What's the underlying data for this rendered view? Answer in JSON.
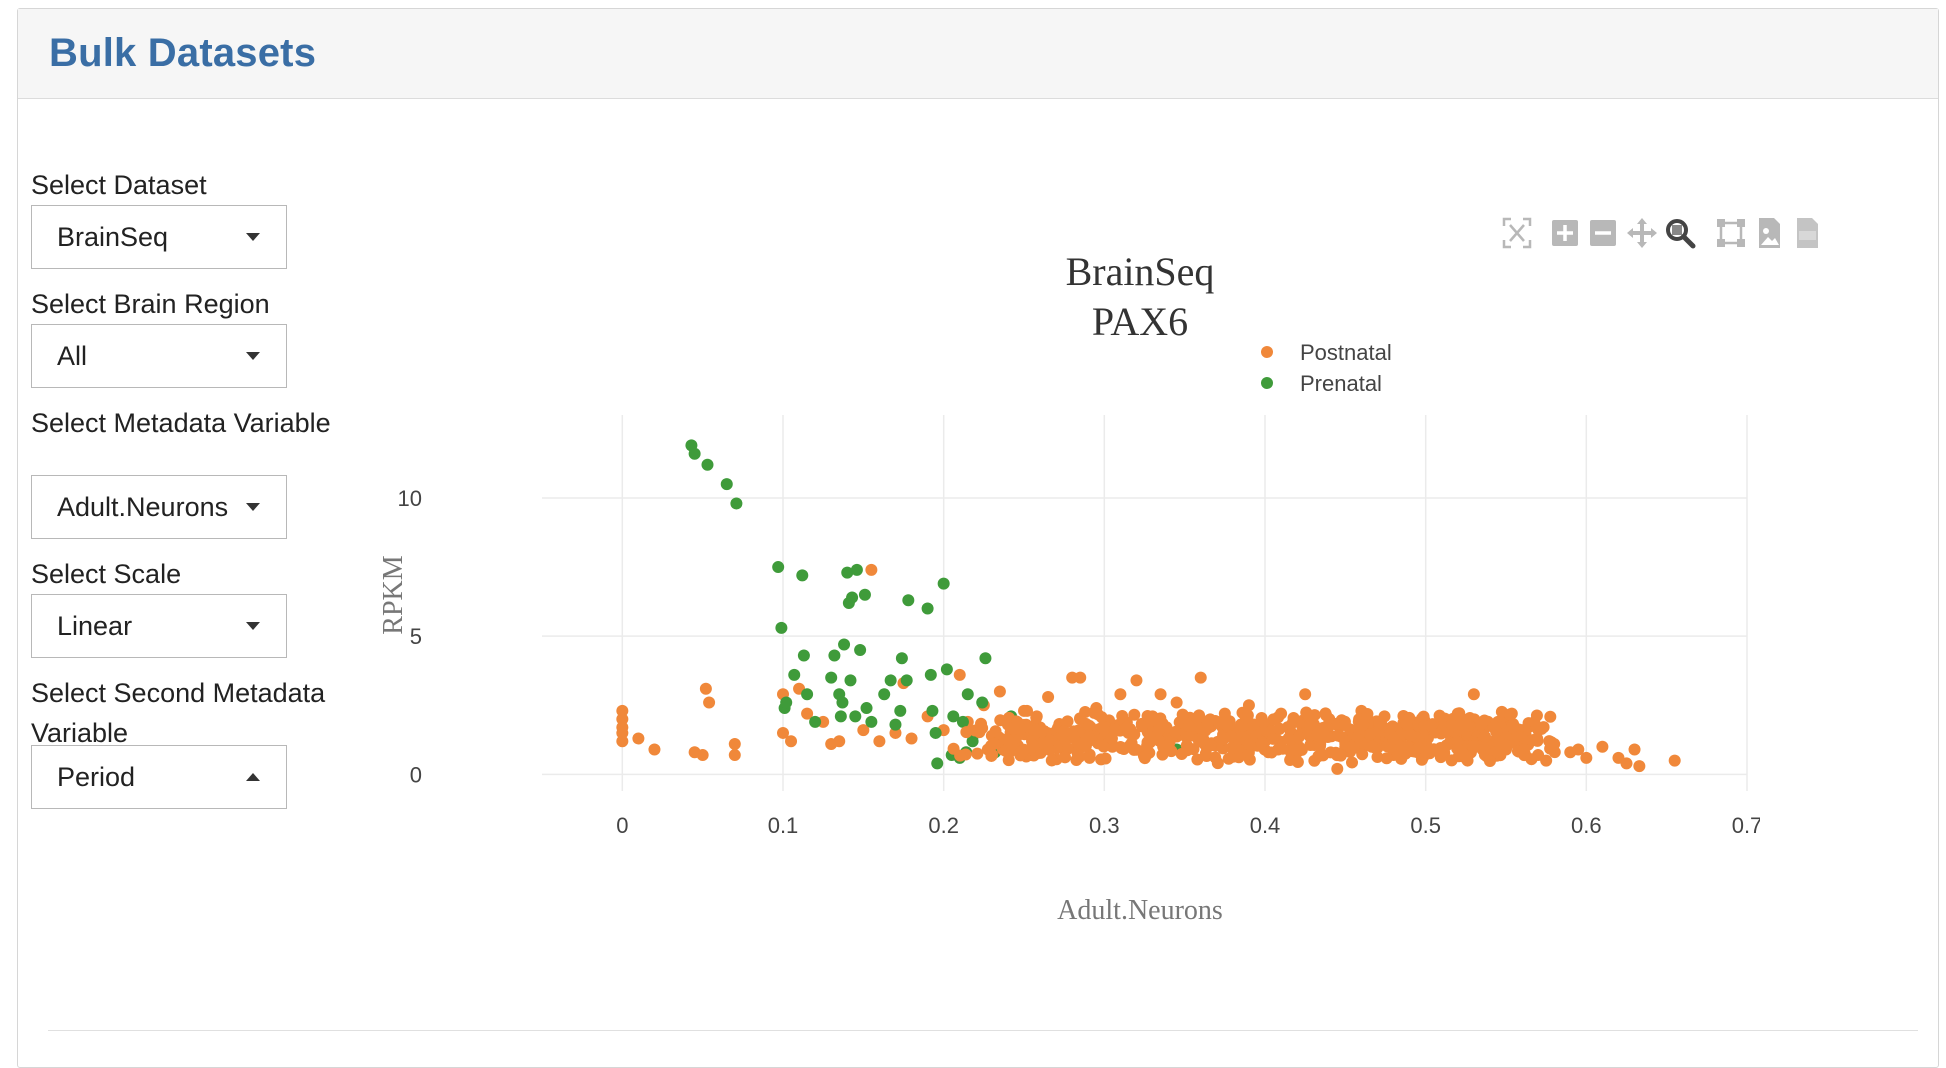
{
  "header": {
    "title": "Bulk Datasets"
  },
  "controls": [
    {
      "label": "Select Dataset",
      "value": "BrainSeq",
      "open": false
    },
    {
      "label": "Select Brain Region",
      "value": "All",
      "open": false
    },
    {
      "label": "Select Metadata Variable",
      "value": "Adult.Neurons",
      "open": false
    },
    {
      "label": "Select Scale",
      "value": "Linear",
      "open": false
    },
    {
      "label": "Select Second Metadata Variable",
      "value": "Period",
      "open": true
    }
  ],
  "modebar": [
    {
      "name": "autoscale-icon",
      "label": "Autoscale"
    },
    {
      "name": "zoom-in-icon",
      "label": "Zoom in"
    },
    {
      "name": "zoom-out-icon",
      "label": "Zoom out"
    },
    {
      "name": "pan-icon",
      "label": "Pan"
    },
    {
      "name": "zoom-icon",
      "label": "Zoom",
      "active": true
    },
    {
      "name": "box-select-icon",
      "label": "Box select"
    },
    {
      "name": "download-image-icon",
      "label": "Download plot as png"
    },
    {
      "name": "download-csv-icon",
      "label": "Download csv"
    }
  ],
  "chart_data": {
    "type": "scatter",
    "title": [
      "BrainSeq",
      "PAX6"
    ],
    "xlabel": "Adult.Neurons",
    "ylabel": "RPKM",
    "xlim": [
      -0.05,
      0.7
    ],
    "ylim": [
      -0.6,
      13
    ],
    "xticks": [
      0,
      0.1,
      0.2,
      0.3,
      0.4,
      0.5,
      0.6,
      0.7
    ],
    "xtick_labels": [
      "0",
      "0.1",
      "0.2",
      "0.3",
      "0.4",
      "0.5",
      "0.6",
      "0.7"
    ],
    "yticks": [
      0,
      5,
      10
    ],
    "ytick_labels": [
      "0",
      "5",
      "10"
    ],
    "grid": true,
    "legend_position": "top-right",
    "series": [
      {
        "name": "Postnatal",
        "color": "#f0883a",
        "points": [
          [
            0.0,
            2.3
          ],
          [
            0.0,
            2.0
          ],
          [
            0.0,
            1.7
          ],
          [
            0.0,
            1.5
          ],
          [
            0.0,
            1.2
          ],
          [
            0.01,
            1.3
          ],
          [
            0.02,
            0.9
          ],
          [
            0.045,
            0.8
          ],
          [
            0.05,
            0.7
          ],
          [
            0.052,
            3.1
          ],
          [
            0.054,
            2.6
          ],
          [
            0.07,
            1.1
          ],
          [
            0.07,
            0.7
          ],
          [
            0.1,
            2.9
          ],
          [
            0.1,
            1.5
          ],
          [
            0.105,
            1.2
          ],
          [
            0.11,
            3.1
          ],
          [
            0.115,
            2.2
          ],
          [
            0.125,
            1.9
          ],
          [
            0.13,
            1.1
          ],
          [
            0.135,
            1.2
          ],
          [
            0.15,
            1.6
          ],
          [
            0.155,
            7.4
          ],
          [
            0.16,
            1.2
          ],
          [
            0.17,
            1.5
          ],
          [
            0.175,
            3.3
          ],
          [
            0.18,
            1.3
          ],
          [
            0.19,
            2.1
          ],
          [
            0.2,
            1.6
          ],
          [
            0.21,
            3.6
          ],
          [
            0.215,
            1.9
          ],
          [
            0.225,
            2.5
          ],
          [
            0.23,
            1.4
          ],
          [
            0.235,
            3.0
          ],
          [
            0.24,
            1.8
          ],
          [
            0.245,
            1.0
          ],
          [
            0.25,
            2.3
          ],
          [
            0.255,
            1.2
          ],
          [
            0.26,
            1.7
          ],
          [
            0.265,
            2.8
          ],
          [
            0.27,
            1.5
          ],
          [
            0.275,
            0.9
          ],
          [
            0.28,
            3.5
          ],
          [
            0.285,
            3.5
          ],
          [
            0.285,
            2.0
          ],
          [
            0.29,
            1.2
          ],
          [
            0.295,
            2.4
          ],
          [
            0.3,
            1.8
          ],
          [
            0.305,
            1.0
          ],
          [
            0.31,
            2.9
          ],
          [
            0.315,
            1.5
          ],
          [
            0.32,
            3.4
          ],
          [
            0.325,
            0.8
          ],
          [
            0.33,
            2.1
          ],
          [
            0.335,
            2.9
          ],
          [
            0.34,
            1.4
          ],
          [
            0.345,
            2.6
          ],
          [
            0.35,
            0.9
          ],
          [
            0.36,
            3.5
          ],
          [
            0.365,
            1.7
          ],
          [
            0.375,
            2.2
          ],
          [
            0.38,
            1.0
          ],
          [
            0.39,
            2.5
          ],
          [
            0.4,
            1.2
          ],
          [
            0.41,
            2.2
          ],
          [
            0.42,
            0.8
          ],
          [
            0.425,
            2.9
          ],
          [
            0.43,
            1.6
          ],
          [
            0.44,
            2.0
          ],
          [
            0.445,
            0.2
          ],
          [
            0.45,
            1.1
          ],
          [
            0.46,
            2.3
          ],
          [
            0.47,
            1.3
          ],
          [
            0.48,
            0.7
          ],
          [
            0.49,
            2.0
          ],
          [
            0.5,
            1.5
          ],
          [
            0.51,
            0.8
          ],
          [
            0.52,
            2.2
          ],
          [
            0.53,
            2.9
          ],
          [
            0.535,
            1.6
          ],
          [
            0.54,
            1.1
          ],
          [
            0.545,
            1.9
          ],
          [
            0.55,
            0.9
          ],
          [
            0.56,
            1.6
          ],
          [
            0.565,
            1.2
          ],
          [
            0.57,
            0.7
          ],
          [
            0.575,
            0.5
          ],
          [
            0.58,
            1.1
          ],
          [
            0.59,
            0.8
          ],
          [
            0.595,
            0.9
          ],
          [
            0.6,
            0.6
          ],
          [
            0.61,
            1.0
          ],
          [
            0.62,
            0.6
          ],
          [
            0.625,
            0.4
          ],
          [
            0.63,
            0.9
          ],
          [
            0.633,
            0.3
          ],
          [
            0.655,
            0.5
          ]
        ]
      },
      {
        "name": "Prenatal",
        "color": "#3f9b3a",
        "points": [
          [
            0.043,
            11.9
          ],
          [
            0.045,
            11.6
          ],
          [
            0.053,
            11.2
          ],
          [
            0.065,
            10.5
          ],
          [
            0.071,
            9.8
          ],
          [
            0.097,
            7.5
          ],
          [
            0.099,
            5.3
          ],
          [
            0.101,
            2.4
          ],
          [
            0.102,
            2.6
          ],
          [
            0.107,
            3.6
          ],
          [
            0.112,
            7.2
          ],
          [
            0.113,
            4.3
          ],
          [
            0.115,
            2.9
          ],
          [
            0.12,
            1.9
          ],
          [
            0.13,
            3.5
          ],
          [
            0.132,
            4.3
          ],
          [
            0.135,
            2.9
          ],
          [
            0.136,
            2.1
          ],
          [
            0.137,
            2.6
          ],
          [
            0.138,
            4.7
          ],
          [
            0.14,
            7.3
          ],
          [
            0.141,
            6.2
          ],
          [
            0.142,
            3.4
          ],
          [
            0.143,
            6.4
          ],
          [
            0.145,
            2.1
          ],
          [
            0.146,
            7.4
          ],
          [
            0.148,
            4.5
          ],
          [
            0.151,
            6.5
          ],
          [
            0.152,
            2.4
          ],
          [
            0.155,
            1.9
          ],
          [
            0.163,
            2.9
          ],
          [
            0.167,
            3.4
          ],
          [
            0.17,
            1.8
          ],
          [
            0.173,
            2.3
          ],
          [
            0.174,
            4.2
          ],
          [
            0.177,
            3.4
          ],
          [
            0.178,
            6.3
          ],
          [
            0.19,
            6.0
          ],
          [
            0.192,
            3.6
          ],
          [
            0.193,
            2.3
          ],
          [
            0.195,
            1.5
          ],
          [
            0.196,
            0.4
          ],
          [
            0.2,
            6.9
          ],
          [
            0.202,
            3.8
          ],
          [
            0.205,
            0.7
          ],
          [
            0.206,
            2.1
          ],
          [
            0.21,
            0.6
          ],
          [
            0.212,
            1.9
          ],
          [
            0.214,
            0.8
          ],
          [
            0.215,
            2.9
          ],
          [
            0.218,
            1.2
          ],
          [
            0.22,
            1.5
          ],
          [
            0.224,
            2.6
          ],
          [
            0.226,
            4.2
          ],
          [
            0.232,
            0.8
          ],
          [
            0.242,
            2.1
          ],
          [
            0.345,
            0.9
          ]
        ]
      }
    ]
  }
}
